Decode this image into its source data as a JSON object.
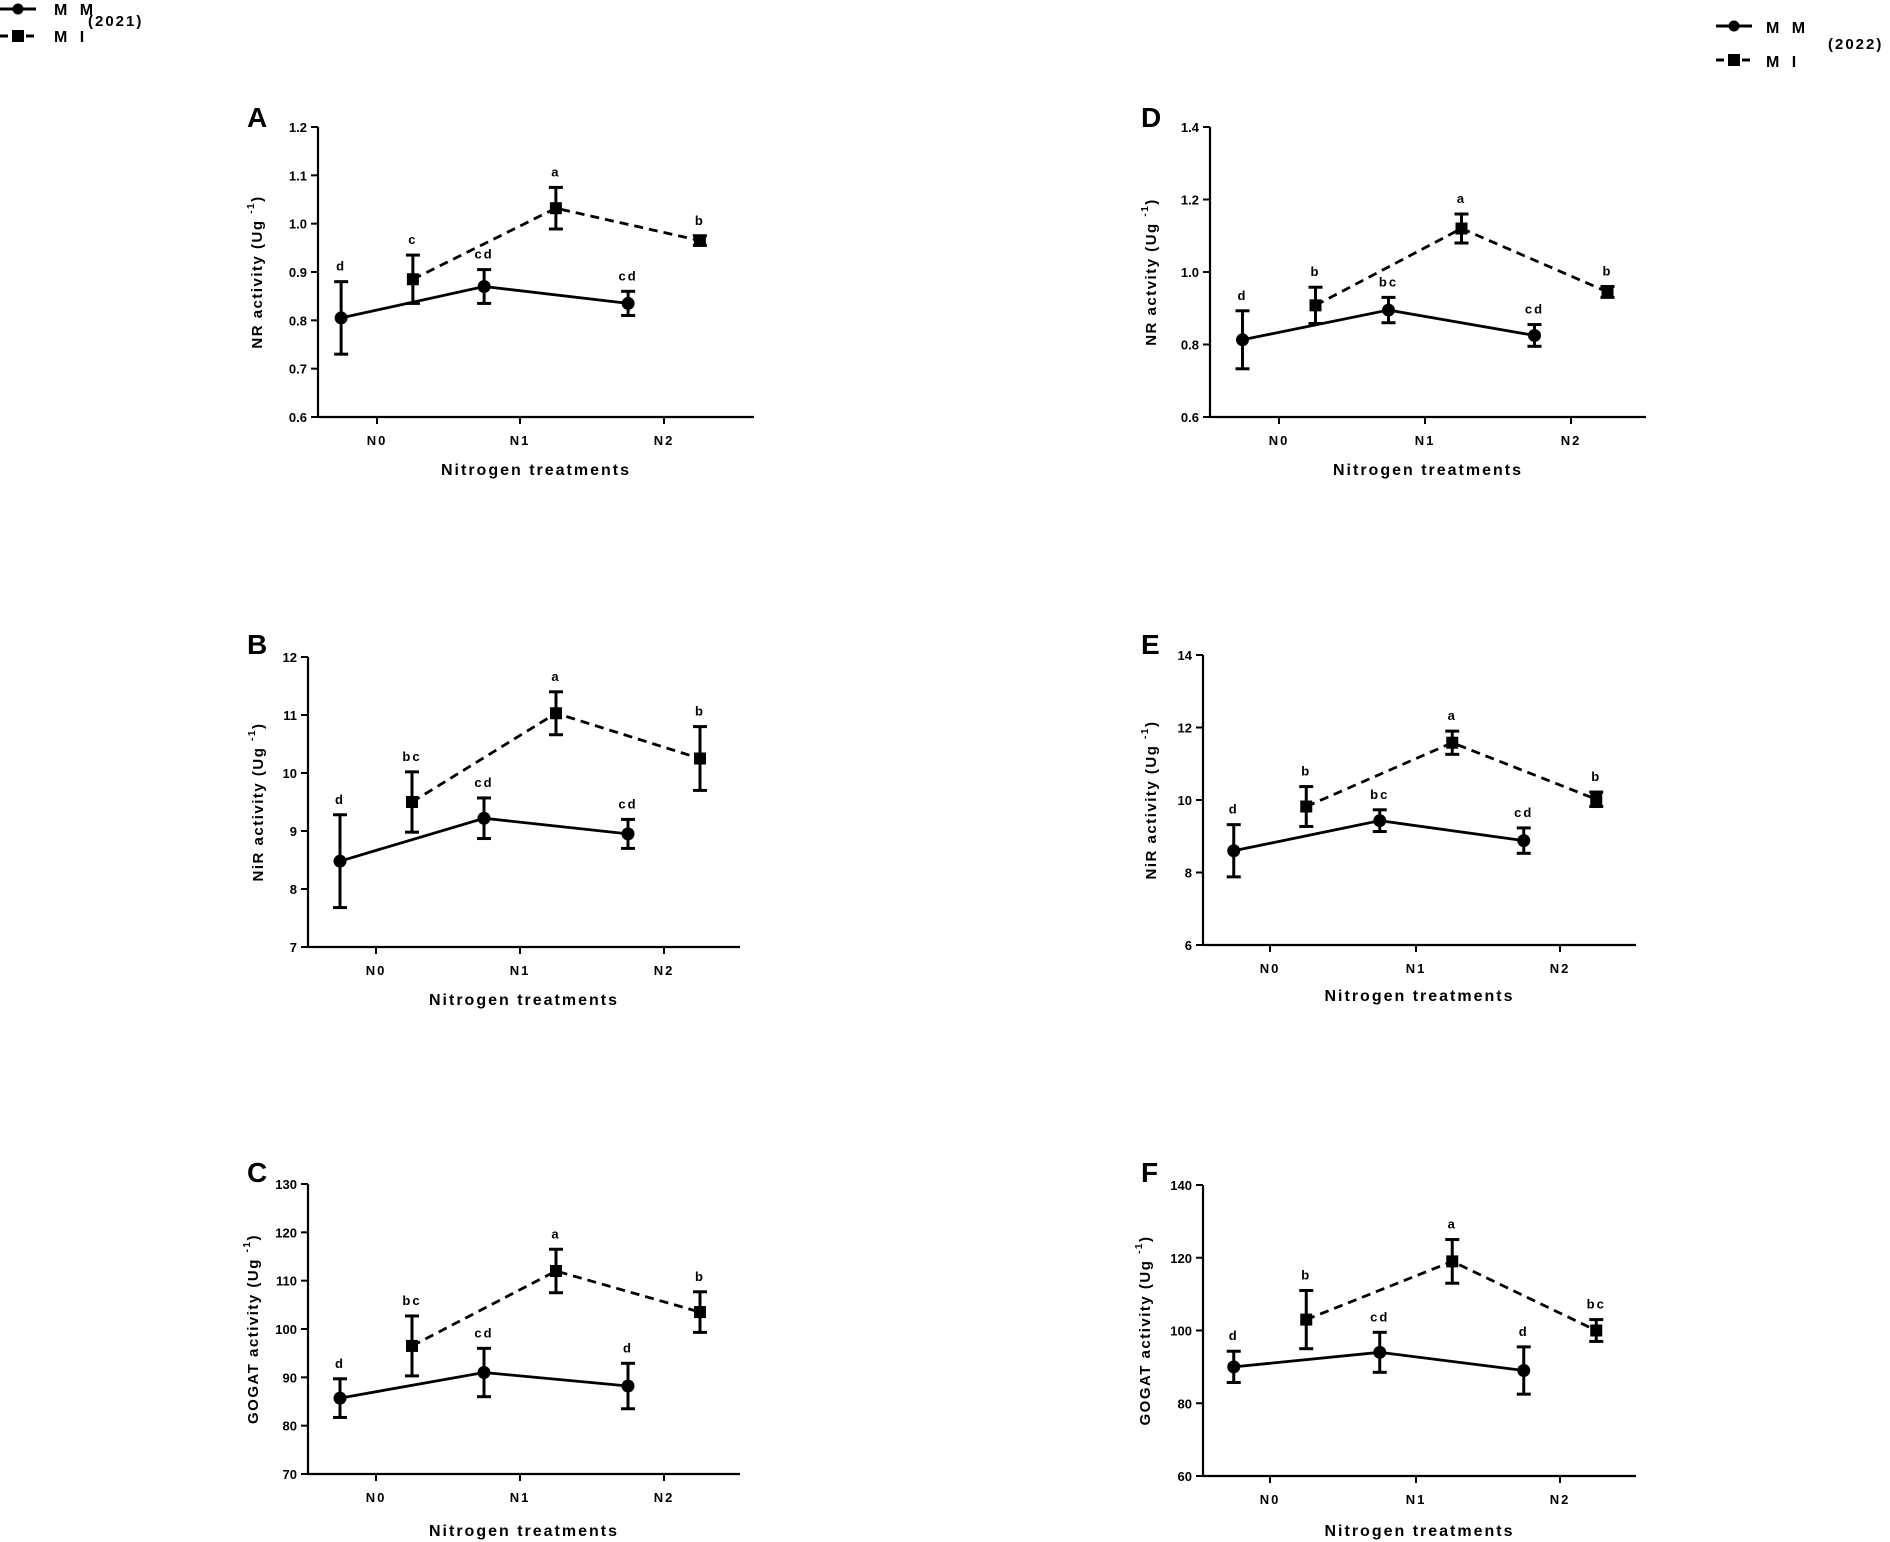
{
  "legends": [
    {
      "year": "(2021)",
      "entries": [
        {
          "label": "M M",
          "marker": "circle",
          "line": "solid"
        },
        {
          "label": "M I",
          "marker": "square",
          "line": "dashed"
        }
      ]
    },
    {
      "year": "(2022)",
      "entries": [
        {
          "label": "M M",
          "marker": "circle",
          "line": "solid"
        },
        {
          "label": "M I",
          "marker": "square",
          "line": "dashed"
        }
      ]
    }
  ],
  "colors": {
    "ink": "#000000",
    "background": "#ffffff"
  },
  "chart_data": [
    {
      "panel": "A",
      "type": "line",
      "year": "2021",
      "xlabel": "Nitrogen treatments",
      "ylabel": "NR activity (Ug",
      "ylabel_sup": "-1",
      "ylabel_end": ")",
      "categories": [
        "N0",
        "N1",
        "N2"
      ],
      "ylim": [
        0.6,
        1.2
      ],
      "yticks": [
        0.6,
        0.7,
        0.8,
        0.9,
        1.0,
        1.1,
        1.2
      ],
      "ytick_labels": [
        "0.6",
        "0.7",
        "0.8",
        "0.9",
        "1.0",
        "1.1",
        "1.2"
      ],
      "series": [
        {
          "name": "M M",
          "values": [
            0.805,
            0.87,
            0.835
          ],
          "errors": [
            0.075,
            0.035,
            0.025
          ],
          "letters": [
            "d",
            "cd",
            "cd"
          ]
        },
        {
          "name": "M I",
          "values": [
            0.885,
            1.032,
            0.965
          ],
          "errors": [
            0.05,
            0.043,
            0.01
          ],
          "letters": [
            "c",
            "a",
            "b"
          ]
        }
      ]
    },
    {
      "panel": "B",
      "type": "line",
      "year": "2021",
      "xlabel": "Nitrogen treatments",
      "ylabel": "NiR activity (Ug",
      "ylabel_sup": "-1",
      "ylabel_end": ")",
      "categories": [
        "N0",
        "N1",
        "N2"
      ],
      "ylim": [
        7,
        12
      ],
      "yticks": [
        7,
        8,
        9,
        10,
        11,
        12
      ],
      "ytick_labels": [
        "7",
        "8",
        "9",
        "10",
        "11",
        "12"
      ],
      "series": [
        {
          "name": "M M",
          "values": [
            8.48,
            9.22,
            8.95
          ],
          "errors": [
            0.8,
            0.35,
            0.25
          ],
          "letters": [
            "d",
            "cd",
            "cd"
          ]
        },
        {
          "name": "M I",
          "values": [
            9.5,
            11.03,
            10.25
          ],
          "errors": [
            0.52,
            0.37,
            0.55
          ],
          "letters": [
            "bc",
            "a",
            "b"
          ]
        }
      ]
    },
    {
      "panel": "C",
      "type": "line",
      "year": "2021",
      "xlabel": "Nitrogen treatments",
      "ylabel": "GOGAT activity (Ug",
      "ylabel_sup": "-1",
      "ylabel_end": ")",
      "categories": [
        "N0",
        "N1",
        "N2"
      ],
      "ylim": [
        70,
        130
      ],
      "yticks": [
        70,
        80,
        90,
        100,
        110,
        120,
        130
      ],
      "ytick_labels": [
        "70",
        "80",
        "90",
        "100",
        "110",
        "120",
        "130"
      ],
      "series": [
        {
          "name": "M M",
          "values": [
            85.7,
            91.0,
            88.2
          ],
          "errors": [
            4.0,
            5.0,
            4.7
          ],
          "letters": [
            "d",
            "cd",
            "d"
          ]
        },
        {
          "name": "M I",
          "values": [
            96.5,
            112.0,
            103.5
          ],
          "errors": [
            6.2,
            4.5,
            4.2
          ],
          "letters": [
            "bc",
            "a",
            "b"
          ]
        }
      ]
    },
    {
      "panel": "D",
      "type": "line",
      "year": "2022",
      "xlabel": "Nitrogen treatments",
      "ylabel": "NR actvity (Ug",
      "ylabel_sup": "-1",
      "ylabel_end": ")",
      "categories": [
        "N0",
        "N1",
        "N2"
      ],
      "ylim": [
        0.6,
        1.4
      ],
      "yticks": [
        0.6,
        0.8,
        1.0,
        1.2,
        1.4
      ],
      "ytick_labels": [
        "0.6",
        "0.8",
        "1.0",
        "1.2",
        "1.4"
      ],
      "series": [
        {
          "name": "M M",
          "values": [
            0.813,
            0.895,
            0.825
          ],
          "errors": [
            0.08,
            0.035,
            0.03
          ],
          "letters": [
            "d",
            "bc",
            "cd"
          ]
        },
        {
          "name": "M I",
          "values": [
            0.908,
            1.12,
            0.945
          ],
          "errors": [
            0.05,
            0.04,
            0.015
          ],
          "letters": [
            "b",
            "a",
            "b"
          ]
        }
      ]
    },
    {
      "panel": "E",
      "type": "line",
      "year": "2022",
      "xlabel": "Nitrogen treatments",
      "ylabel": "NiR activity (Ug",
      "ylabel_sup": "-1",
      "ylabel_end": ")",
      "categories": [
        "N0",
        "N1",
        "N2"
      ],
      "ylim": [
        6,
        14
      ],
      "yticks": [
        6,
        8,
        10,
        12,
        14
      ],
      "ytick_labels": [
        "6",
        "8",
        "10",
        "12",
        "14"
      ],
      "series": [
        {
          "name": "M M",
          "values": [
            8.6,
            9.43,
            8.88
          ],
          "errors": [
            0.72,
            0.3,
            0.35
          ],
          "letters": [
            "d",
            "bc",
            "cd"
          ]
        },
        {
          "name": "M I",
          "values": [
            9.82,
            11.58,
            10.02
          ],
          "errors": [
            0.55,
            0.32,
            0.2
          ],
          "letters": [
            "b",
            "a",
            "b"
          ]
        }
      ]
    },
    {
      "panel": "F",
      "type": "line",
      "year": "2022",
      "xlabel": "Nitrogen treatments",
      "ylabel": "GOGAT activity (Ug",
      "ylabel_sup": "-1",
      "ylabel_end": ")",
      "categories": [
        "N0",
        "N1",
        "N2"
      ],
      "ylim": [
        60,
        140
      ],
      "yticks": [
        60,
        80,
        100,
        120,
        140
      ],
      "ytick_labels": [
        "60",
        "80",
        "100",
        "120",
        "140"
      ],
      "series": [
        {
          "name": "M M",
          "values": [
            90.0,
            94.0,
            89.0
          ],
          "errors": [
            4.3,
            5.5,
            6.5
          ],
          "letters": [
            "d",
            "cd",
            "d"
          ]
        },
        {
          "name": "M I",
          "values": [
            103.0,
            119.0,
            100.0
          ],
          "errors": [
            8.0,
            6.0,
            3.0
          ],
          "letters": [
            "b",
            "a",
            "bc"
          ]
        }
      ]
    }
  ]
}
